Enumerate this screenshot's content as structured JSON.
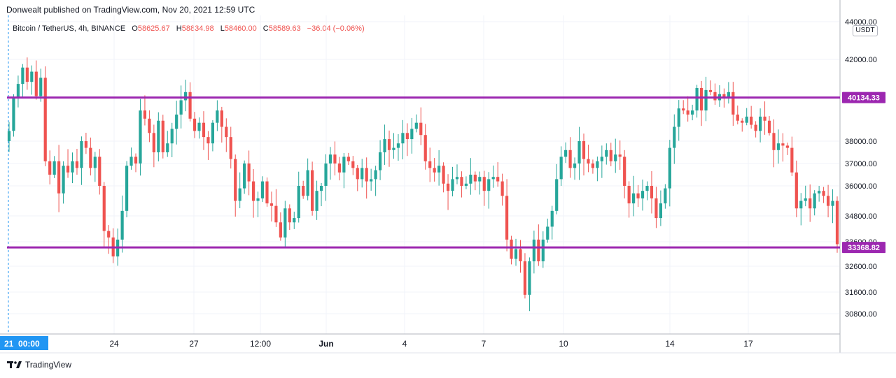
{
  "header": {
    "publisher": "Donwealt published on TradingView.com, Nov 20, 2021 12:59 UTC"
  },
  "legend": {
    "symbol": "Bitcoin / TetherUS, 4h, BINANCE",
    "open_label": "O",
    "open": "58625.67",
    "high_label": "H",
    "high": "58834.98",
    "low_label": "L",
    "low": "58460.00",
    "close_label": "C",
    "close": "58589.63",
    "change": "−36.04 (−0.06%)"
  },
  "currency_button": "USDT",
  "footer": {
    "brand": "TradingView",
    "logo": "tradingview-logo-icon"
  },
  "colors": {
    "up": "#26a69a",
    "down": "#ef5350",
    "level": "#9c27b0",
    "cursor_box": "#2196f3"
  },
  "chart_data": {
    "type": "candlestick",
    "title": "Bitcoin / TetherUS, 4h, BINANCE",
    "y_axis_ticks": [
      44000,
      42000,
      38000,
      37000,
      36000,
      34800,
      33600,
      32600,
      31600,
      30800
    ],
    "y_axis_tick_labels": [
      "44000.00",
      "42000.00",
      "38000.00",
      "37000.00",
      "36000.00",
      "34800.00",
      "33600.00",
      "32600.00",
      "31600.00",
      "30800.00"
    ],
    "x_axis_labels": [
      "24",
      "27",
      "12:00",
      "Jun",
      "4",
      "7",
      "10",
      "14",
      "17"
    ],
    "x_axis_bold": [
      "Jun"
    ],
    "cursor_x_label": "21  00:00",
    "horizontal_levels": [
      {
        "value": 40134.33,
        "label": "40134.33"
      },
      {
        "value": 33368.82,
        "label": "33368.82"
      }
    ],
    "closes": [
      38500,
      40100,
      40800,
      41600,
      40900,
      41400,
      40200,
      41100,
      37100,
      36500,
      37100,
      35700,
      36900,
      36600,
      37100,
      36800,
      38000,
      37700,
      36800,
      37300,
      36000,
      34100,
      33800,
      33000,
      33700,
      35000,
      36900,
      37300,
      37000,
      39500,
      39100,
      38400,
      37500,
      39000,
      37500,
      37900,
      38600,
      39300,
      40000,
      40400,
      39100,
      38500,
      38900,
      38200,
      37900,
      38900,
      39500,
      38700,
      38200,
      37200,
      35400,
      35900,
      37000,
      36200,
      35400,
      35500,
      36200,
      35300,
      35200,
      34500,
      33800,
      35100,
      34500,
      34700,
      36000,
      35600,
      36700,
      35000,
      35800,
      36000,
      37000,
      37400,
      37000,
      36600,
      37300,
      37100,
      36800,
      36300,
      36800,
      36200,
      36300,
      36700,
      37500,
      38100,
      37600,
      37700,
      37900,
      38400,
      38100,
      38600,
      38900,
      38300,
      37100,
      36800,
      36600,
      36900,
      36100,
      35800,
      36300,
      36400,
      36000,
      36100,
      36500,
      36200,
      36400,
      35800,
      36300,
      36400,
      36200,
      35600,
      33700,
      32900,
      33300,
      32800,
      31500,
      32800,
      33700,
      32800,
      33700,
      34300,
      35000,
      36300,
      37300,
      37600,
      36800,
      37000,
      38000,
      37200,
      37000,
      36800,
      37100,
      37300,
      37600,
      37100,
      37400,
      37300,
      36000,
      35300,
      35700,
      35500,
      35800,
      36000,
      35500,
      34700,
      35300,
      35900,
      37700,
      38700,
      39600,
      39500,
      39300,
      39500,
      40600,
      39500,
      40500,
      40400,
      40000,
      40300,
      40100,
      40400,
      39300,
      39000,
      38900,
      39200,
      38800,
      38500,
      39200,
      39000,
      38400,
      37600,
      37900,
      37800,
      37700,
      36600,
      35100,
      35400,
      35500,
      35100,
      35700,
      35800,
      35600,
      35200,
      35400,
      33500
    ]
  }
}
